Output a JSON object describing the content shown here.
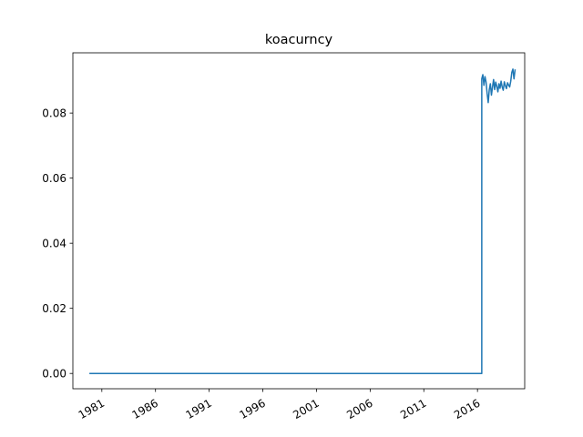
{
  "chart_data": {
    "type": "line",
    "title": "koacurncy",
    "xlabel": "",
    "ylabel": "",
    "x_tick_labels": [
      "1981",
      "1986",
      "1991",
      "1996",
      "2001",
      "2006",
      "2011",
      "2016"
    ],
    "y_tick_labels": [
      "0.00",
      "0.02",
      "0.04",
      "0.06",
      "0.08"
    ],
    "x_ticks": [
      1981,
      1986,
      1991,
      1996,
      2001,
      2006,
      2011,
      2016
    ],
    "y_ticks": [
      0.0,
      0.02,
      0.04,
      0.06,
      0.08
    ],
    "xlim": [
      1978.3,
      2020.4
    ],
    "ylim": [
      -0.0047,
      0.0985
    ],
    "grid": false,
    "series": [
      {
        "color": "#1f77b4",
        "x": [
          1979.9,
          2016.4,
          2016.4,
          2016.5,
          2016.6,
          2016.7,
          2016.8,
          2016.9,
          2017.0,
          2017.1,
          2017.2,
          2017.3,
          2017.4,
          2017.5,
          2017.6,
          2017.7,
          2017.8,
          2017.9,
          2018.0,
          2018.1,
          2018.2,
          2018.3,
          2018.4,
          2018.5,
          2018.6,
          2018.7,
          2018.8,
          2018.9,
          2019.0,
          2019.1,
          2019.2,
          2019.3,
          2019.4,
          2019.5
        ],
        "y": [
          0.0,
          0.0,
          0.0905,
          0.0918,
          0.0885,
          0.0912,
          0.0895,
          0.086,
          0.0832,
          0.0872,
          0.089,
          0.0855,
          0.088,
          0.0903,
          0.0872,
          0.0895,
          0.0882,
          0.0865,
          0.089,
          0.0876,
          0.0898,
          0.088,
          0.087,
          0.0896,
          0.0884,
          0.0875,
          0.0893,
          0.0886,
          0.088,
          0.0898,
          0.0925,
          0.0935,
          0.0905,
          0.0932
        ]
      }
    ]
  }
}
